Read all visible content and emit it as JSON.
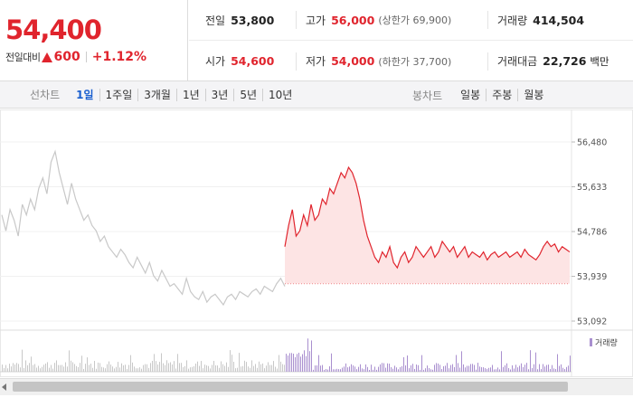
{
  "quote": {
    "price": "54,400",
    "change_label": "전일대비",
    "change_value": "600",
    "change_pct": "+1.12%"
  },
  "stats": {
    "row1": [
      {
        "label": "전일",
        "value": "53,800",
        "sub": "",
        "unit": ""
      },
      {
        "label": "고가",
        "value": "56,000",
        "sub": "(상한가 69,900)",
        "unit": ""
      },
      {
        "label": "거래량",
        "value": "414,504",
        "sub": "",
        "unit": ""
      }
    ],
    "row2": [
      {
        "label": "시가",
        "value": "54,600",
        "sub": "",
        "unit": ""
      },
      {
        "label": "저가",
        "value": "54,000",
        "sub": "(하한가 37,700)",
        "unit": ""
      },
      {
        "label": "거래대금",
        "value": "22,726",
        "sub": "",
        "unit": "백만"
      }
    ]
  },
  "tabs": {
    "line_label": "선차트",
    "line_tabs": [
      "1일",
      "1주일",
      "3개월",
      "1년",
      "3년",
      "5년",
      "10년"
    ],
    "active_index": 0,
    "candle_label": "봉차트",
    "candle_tabs": [
      "일봉",
      "주봉",
      "월봉"
    ]
  },
  "colors": {
    "up": "#e0242d",
    "today_fill": "#fde4e4",
    "prev_line": "#c8c8c8",
    "volume_today": "#a98fcf",
    "volume_prev": "#c8c8c8",
    "active_tab": "#1a5fcf"
  },
  "chart_data": {
    "type": "line",
    "y_ticks": [
      "56,480",
      "55,633",
      "54,786",
      "53,939",
      "53,092"
    ],
    "ylim": [
      53092,
      56480
    ],
    "previous_close": 53800,
    "previous_day": [
      55100,
      54800,
      55200,
      55000,
      54700,
      55300,
      55100,
      55400,
      55200,
      55600,
      55800,
      55500,
      56100,
      56300,
      55900,
      55600,
      55300,
      55700,
      55400,
      55200,
      55000,
      55100,
      54900,
      54800,
      54600,
      54700,
      54500,
      54400,
      54300,
      54450,
      54350,
      54200,
      54100,
      54300,
      54150,
      54000,
      54200,
      53950,
      53850,
      54050,
      53900,
      53750,
      53800,
      53700,
      53600,
      53900,
      53650,
      53550,
      53500,
      53650,
      53450,
      53550,
      53600,
      53500,
      53400,
      53550,
      53600,
      53500,
      53650,
      53600,
      53550,
      53650,
      53700,
      53600,
      53750,
      53700,
      53650,
      53800,
      53900,
      53750
    ],
    "today": [
      54500,
      54900,
      55200,
      54700,
      54800,
      55100,
      54900,
      55300,
      55000,
      55100,
      55400,
      55300,
      55600,
      55500,
      55700,
      55900,
      55800,
      56000,
      55900,
      55700,
      55400,
      55000,
      54700,
      54500,
      54300,
      54200,
      54400,
      54300,
      54500,
      54200,
      54100,
      54300,
      54400,
      54200,
      54300,
      54500,
      54400,
      54300,
      54400,
      54500,
      54300,
      54400,
      54600,
      54500,
      54400,
      54500,
      54300,
      54400,
      54500,
      54300,
      54400,
      54350,
      54300,
      54400,
      54250,
      54350,
      54400,
      54300,
      54350,
      54400,
      54300,
      54350,
      54400,
      54300,
      54450,
      54350,
      54300,
      54250,
      54350,
      54500,
      54600,
      54500,
      54550,
      54400,
      54500,
      54450,
      54400
    ],
    "volume_legend": "거래량"
  }
}
